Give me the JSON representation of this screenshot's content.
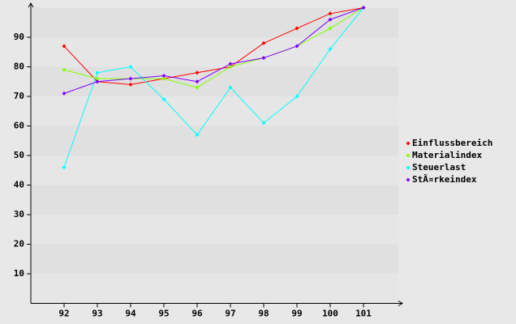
{
  "chart_data": {
    "type": "line",
    "categories": [
      "92",
      "93",
      "94",
      "95",
      "96",
      "97",
      "98",
      "99",
      "100",
      "101"
    ],
    "series": [
      {
        "name": "Einflussbereich",
        "color": "#ff0000",
        "values": [
          87,
          75,
          74,
          76,
          78,
          80,
          88,
          93,
          98,
          100
        ]
      },
      {
        "name": "Materialindex",
        "color": "#80ff00",
        "values": [
          79,
          76,
          76,
          76,
          73,
          80,
          83,
          87,
          93,
          100
        ]
      },
      {
        "name": "Steuerlast",
        "color": "#00ffff",
        "values": [
          46,
          78,
          80,
          69,
          57,
          73,
          61,
          70,
          86,
          100
        ]
      },
      {
        "name": "StÃ¤rkeindex",
        "color": "#8000ff",
        "values": [
          71,
          75,
          76,
          77,
          75,
          81,
          83,
          87,
          96,
          100
        ]
      }
    ],
    "ylim": [
      0,
      100
    ],
    "yticks": [
      10,
      20,
      30,
      40,
      50,
      60,
      70,
      80,
      90
    ],
    "grid": true,
    "legend": "right"
  }
}
